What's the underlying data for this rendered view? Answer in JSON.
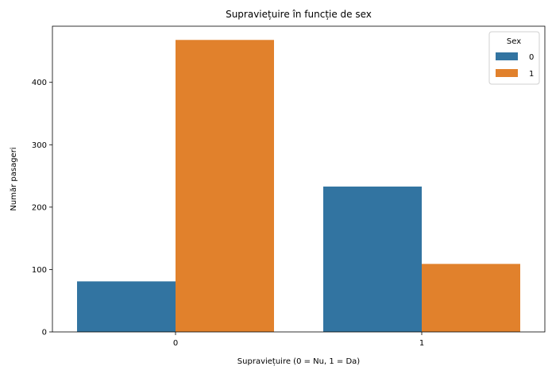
{
  "chart_data": {
    "type": "bar",
    "title": "Supraviețuire în funcție de sex",
    "xlabel": "Supraviețuire (0 = Nu, 1 = Da)",
    "ylabel": "Număr pasageri",
    "categories": [
      "0",
      "1"
    ],
    "series": [
      {
        "name": "0",
        "color": "#3274a1",
        "values": [
          81,
          233
        ]
      },
      {
        "name": "1",
        "color": "#e1812c",
        "values": [
          468,
          109
        ]
      }
    ],
    "ylim": [
      0,
      490
    ],
    "yticks": [
      0,
      100,
      200,
      300,
      400
    ],
    "grid": false,
    "legend": {
      "title": "Sex",
      "position": "top-right"
    }
  }
}
